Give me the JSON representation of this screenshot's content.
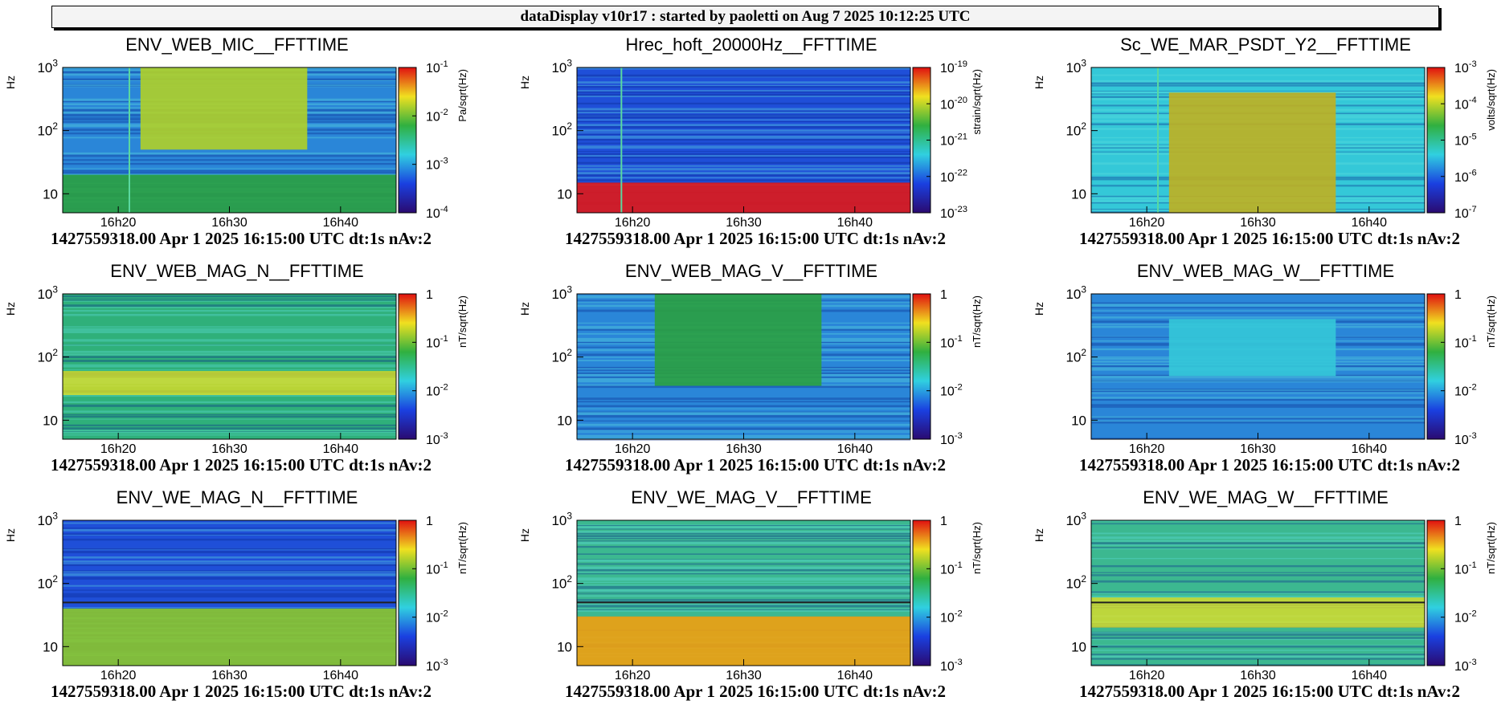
{
  "header": {
    "title": "dataDisplay v10r17 : started by paoletti on Aug  7 2025 10:12:25 UTC"
  },
  "footer_text": "1427559318.00 Apr 1 2025 16:15:00 UTC dt:1s nAv:2",
  "chart_data": [
    {
      "type": "heatmap",
      "title": "ENV_WEB_MIC__FFTTIME",
      "ylabel": "Hz",
      "zlabel": "Pa/sqrt(Hz)",
      "x_ticks": [
        "16h20",
        "16h30",
        "16h40"
      ],
      "y_ticks": [
        "10",
        "10^2",
        "10^3"
      ],
      "z_ticks": [
        "10^-1",
        "10^-2",
        "10^-3",
        "10^-4"
      ],
      "y_scale": "log",
      "z_scale": "log",
      "xlim": [
        "16h15",
        "16h45"
      ],
      "ylim": [
        5,
        1000
      ],
      "features": {
        "highlight_window": [
          "16h22",
          "16h37"
        ],
        "highlight_band_hz": [
          50,
          1000
        ],
        "low_band_hz": [
          5,
          20
        ],
        "base_level": "blue-cyan",
        "highlight_level": "yellow-green",
        "low_level": "green",
        "stripe_at": "16h21"
      }
    },
    {
      "type": "heatmap",
      "title": "Hrec_hoft_20000Hz__FFTTIME",
      "ylabel": "Hz",
      "zlabel": "strain/sqrt(Hz)",
      "x_ticks": [
        "16h20",
        "16h30",
        "16h40"
      ],
      "y_ticks": [
        "10",
        "10^2",
        "10^3"
      ],
      "z_ticks": [
        "10^-19",
        "10^-20",
        "10^-21",
        "10^-22",
        "10^-23"
      ],
      "y_scale": "log",
      "z_scale": "log",
      "xlim": [
        "16h15",
        "16h45"
      ],
      "ylim": [
        5,
        1000
      ],
      "features": {
        "base_level": "blue",
        "low_band_hz": [
          5,
          15
        ],
        "low_level": "red",
        "stripe_at": "16h19"
      }
    },
    {
      "type": "heatmap",
      "title": "Sc_WE_MAR_PSDT_Y2__FFTTIME",
      "ylabel": "Hz",
      "zlabel": "volts/sqrt(Hz)",
      "x_ticks": [
        "16h20",
        "16h30",
        "16h40"
      ],
      "y_ticks": [
        "10",
        "10^2",
        "10^3"
      ],
      "z_ticks": [
        "10^-3",
        "10^-4",
        "10^-5",
        "10^-6",
        "10^-7"
      ],
      "y_scale": "log",
      "z_scale": "log",
      "xlim": [
        "16h15",
        "16h45"
      ],
      "ylim": [
        5,
        1000
      ],
      "features": {
        "highlight_window": [
          "16h22",
          "16h37"
        ],
        "highlight_band_hz": [
          5,
          400
        ],
        "base_level": "cyan",
        "highlight_level": "green-orange",
        "stripe_at": "16h21"
      }
    },
    {
      "type": "heatmap",
      "title": "ENV_WEB_MAG_N__FFTTIME",
      "ylabel": "Hz",
      "zlabel": "nT/sqrt(Hz)",
      "x_ticks": [
        "16h20",
        "16h30",
        "16h40"
      ],
      "y_ticks": [
        "10",
        "10^2",
        "10^3"
      ],
      "z_ticks": [
        "1",
        "10^-1",
        "10^-2",
        "10^-3"
      ],
      "y_scale": "log",
      "z_scale": "log",
      "xlim": [
        "16h15",
        "16h45"
      ],
      "ylim": [
        5,
        1000
      ],
      "features": {
        "base_level": "green-cyan",
        "mid_band_hz": [
          25,
          60
        ],
        "mid_level": "yellow"
      }
    },
    {
      "type": "heatmap",
      "title": "ENV_WEB_MAG_V__FFTTIME",
      "ylabel": "Hz",
      "zlabel": "nT/sqrt(Hz)",
      "x_ticks": [
        "16h20",
        "16h30",
        "16h40"
      ],
      "y_ticks": [
        "10",
        "10^2",
        "10^3"
      ],
      "z_ticks": [
        "1",
        "10^-1",
        "10^-2",
        "10^-3"
      ],
      "y_scale": "log",
      "z_scale": "log",
      "xlim": [
        "16h15",
        "16h45"
      ],
      "ylim": [
        5,
        1000
      ],
      "features": {
        "highlight_window": [
          "16h22",
          "16h37"
        ],
        "highlight_band_hz": [
          35,
          1000
        ],
        "base_level": "blue-cyan",
        "highlight_level": "green"
      }
    },
    {
      "type": "heatmap",
      "title": "ENV_WEB_MAG_W__FFTTIME",
      "ylabel": "Hz",
      "zlabel": "nT/sqrt(Hz)",
      "x_ticks": [
        "16h20",
        "16h30",
        "16h40"
      ],
      "y_ticks": [
        "10",
        "10^2",
        "10^3"
      ],
      "z_ticks": [
        "1",
        "10^-1",
        "10^-2",
        "10^-3"
      ],
      "y_scale": "log",
      "z_scale": "log",
      "xlim": [
        "16h15",
        "16h45"
      ],
      "ylim": [
        5,
        1000
      ],
      "features": {
        "highlight_window": [
          "16h22",
          "16h37"
        ],
        "highlight_band_hz": [
          50,
          400
        ],
        "base_level": "blue-cyan",
        "highlight_level": "cyan"
      }
    },
    {
      "type": "heatmap",
      "title": "ENV_WE_MAG_N__FFTTIME",
      "ylabel": "Hz",
      "zlabel": "nT/sqrt(Hz)",
      "x_ticks": [
        "16h20",
        "16h30",
        "16h40"
      ],
      "y_ticks": [
        "10",
        "10^2",
        "10^3"
      ],
      "z_ticks": [
        "1",
        "10^-1",
        "10^-2",
        "10^-3"
      ],
      "y_scale": "log",
      "z_scale": "log",
      "xlim": [
        "16h15",
        "16h45"
      ],
      "ylim": [
        5,
        1000
      ],
      "features": {
        "base_level": "blue",
        "low_band_hz": [
          5,
          40
        ],
        "low_level": "green-yellow",
        "line_hz": 50
      }
    },
    {
      "type": "heatmap",
      "title": "ENV_WE_MAG_V__FFTTIME",
      "ylabel": "Hz",
      "zlabel": "nT/sqrt(Hz)",
      "x_ticks": [
        "16h20",
        "16h30",
        "16h40"
      ],
      "y_ticks": [
        "10",
        "10^2",
        "10^3"
      ],
      "z_ticks": [
        "1",
        "10^-1",
        "10^-2",
        "10^-3"
      ],
      "y_scale": "log",
      "z_scale": "log",
      "xlim": [
        "16h15",
        "16h45"
      ],
      "ylim": [
        5,
        1000
      ],
      "features": {
        "base_level": "cyan-green",
        "low_band_hz": [
          5,
          30
        ],
        "low_level": "yellow-red",
        "line_hz": 50
      }
    },
    {
      "type": "heatmap",
      "title": "ENV_WE_MAG_W__FFTTIME",
      "ylabel": "Hz",
      "zlabel": "nT/sqrt(Hz)",
      "x_ticks": [
        "16h20",
        "16h30",
        "16h40"
      ],
      "y_ticks": [
        "10",
        "10^2",
        "10^3"
      ],
      "z_ticks": [
        "1",
        "10^-1",
        "10^-2",
        "10^-3"
      ],
      "y_scale": "log",
      "z_scale": "log",
      "xlim": [
        "16h15",
        "16h45"
      ],
      "ylim": [
        5,
        1000
      ],
      "features": {
        "base_level": "cyan-green",
        "mid_band_hz": [
          20,
          60
        ],
        "mid_level": "yellow",
        "line_hz": 50
      }
    }
  ]
}
